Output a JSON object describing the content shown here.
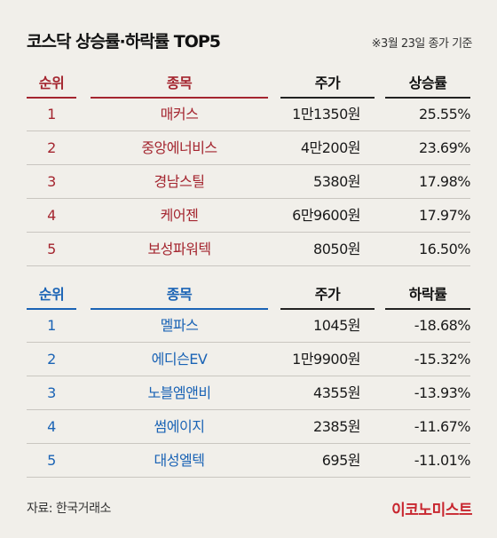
{
  "title": "코스닥 상승률·하락률 TOP5",
  "note": "※3월 23일 종가 기준",
  "gainers": {
    "headers": [
      "순위",
      "종목",
      "주가",
      "상승률"
    ],
    "rows": [
      {
        "rank": "1",
        "name": "매커스",
        "price": "1만1350원",
        "rate": "25.55%"
      },
      {
        "rank": "2",
        "name": "중앙에너비스",
        "price": "4만200원",
        "rate": "23.69%"
      },
      {
        "rank": "3",
        "name": "경남스틸",
        "price": "5380원",
        "rate": "17.98%"
      },
      {
        "rank": "4",
        "name": "케어젠",
        "price": "6만9600원",
        "rate": "17.97%"
      },
      {
        "rank": "5",
        "name": "보성파워텍",
        "price": "8050원",
        "rate": "16.50%"
      }
    ]
  },
  "losers": {
    "headers": [
      "순위",
      "종목",
      "주가",
      "하락률"
    ],
    "rows": [
      {
        "rank": "1",
        "name": "멜파스",
        "price": "1045원",
        "rate": "-18.68%"
      },
      {
        "rank": "2",
        "name": "에디슨EV",
        "price": "1만9900원",
        "rate": "-15.32%"
      },
      {
        "rank": "3",
        "name": "노블엠앤비",
        "price": "4355원",
        "rate": "-13.93%"
      },
      {
        "rank": "4",
        "name": "썸에이지",
        "price": "2385원",
        "rate": "-11.67%"
      },
      {
        "rank": "5",
        "name": "대성엘텍",
        "price": "695원",
        "rate": "-11.01%"
      }
    ]
  },
  "footer": {
    "source": "자료: 한국거래소",
    "brand": "이코노미스트"
  },
  "colors": {
    "gain_accent": "#a4252f",
    "loss_accent": "#1a63b5",
    "brand": "#c8262f",
    "background": "#f1efea"
  }
}
